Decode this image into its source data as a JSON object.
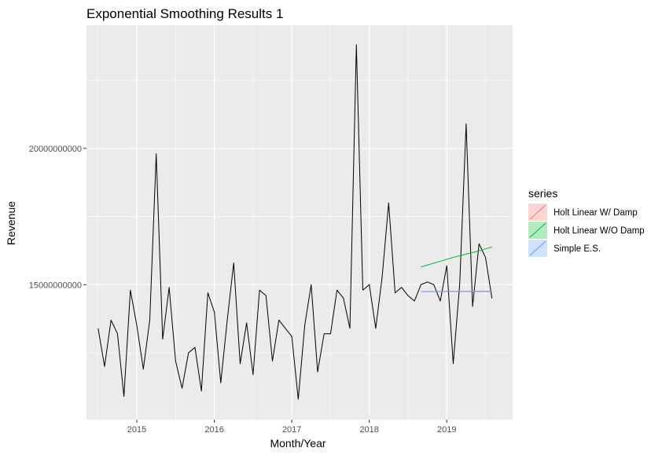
{
  "chart_data": {
    "type": "line",
    "title": "Exponential Smoothing Results 1",
    "xlabel": "Month/Year",
    "ylabel": "Revenue",
    "x_ticks": [
      {
        "value": 2015,
        "label": "2015"
      },
      {
        "value": 2016,
        "label": "2016"
      },
      {
        "value": 2017,
        "label": "2017"
      },
      {
        "value": 2018,
        "label": "2018"
      },
      {
        "value": 2019,
        "label": "2019"
      }
    ],
    "y_ticks": [
      {
        "value": 15000000000,
        "label": "15000000000"
      },
      {
        "value": 20000000000,
        "label": "20000000000"
      }
    ],
    "xlim": [
      2014.35,
      2019.85
    ],
    "ylim": [
      10050000000,
      24520000000
    ],
    "grid": true,
    "legend_title": "series",
    "legend_position": "right",
    "actual": {
      "x_start": 2014.5,
      "step": 0.08333333,
      "values": [
        13400000000,
        12000000000,
        13700000000,
        13200000000,
        10900000000,
        14800000000,
        13500000000,
        11900000000,
        13700000000,
        19800000000,
        13000000000,
        14900000000,
        12200000000,
        11200000000,
        12500000000,
        12700000000,
        11100000000,
        14700000000,
        14000000000,
        11400000000,
        13700000000,
        15800000000,
        12100000000,
        13600000000,
        11700000000,
        14800000000,
        14600000000,
        12200000000,
        13700000000,
        13400000000,
        13100000000,
        10800000000,
        13500000000,
        15000000000,
        11800000000,
        13200000000,
        13200000000,
        14800000000,
        14500000000,
        13400000000,
        23800000000,
        14800000000,
        15000000000,
        13400000000,
        15300000000,
        18000000000,
        14700000000,
        14900000000,
        14600000000,
        14400000000,
        15000000000,
        15100000000,
        15000000000,
        14400000000,
        15700000000,
        12100000000,
        15000000000,
        20900000000,
        14200000000,
        16500000000,
        16000000000,
        14500000000
      ]
    },
    "series": [
      {
        "name": "Holt Linear W/ Damp",
        "color": "#f8766d",
        "x_start": 2018.6667,
        "step": 0.08333333,
        "values": [
          14750000000,
          14751000000,
          14752000000,
          14753000000,
          14754000000,
          14755000000,
          14756000000,
          14757000000,
          14758000000,
          14759000000,
          14760000000,
          14761000000
        ]
      },
      {
        "name": "Holt Linear W/O Damp",
        "color": "#00ba38",
        "x_start": 2018.6667,
        "step": 0.08333333,
        "values": [
          15650000000,
          15720000000,
          15790000000,
          15860000000,
          15930000000,
          16000000000,
          16060000000,
          16120000000,
          16180000000,
          16240000000,
          16310000000,
          16380000000
        ]
      },
      {
        "name": "Simple E.S.",
        "color": "#619cff",
        "x_start": 2018.6667,
        "step": 0.08333333,
        "values": [
          14750000000,
          14750000000,
          14750000000,
          14750000000,
          14750000000,
          14750000000,
          14750000000,
          14750000000,
          14750000000,
          14750000000,
          14750000000,
          14750000000
        ]
      }
    ]
  }
}
